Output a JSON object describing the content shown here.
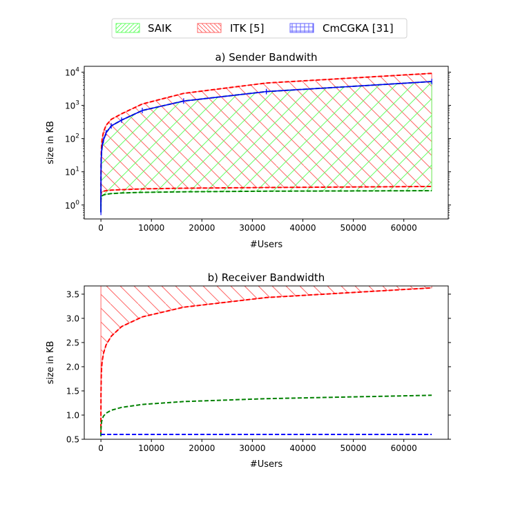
{
  "legend": {
    "entries": [
      {
        "label": "SAIK",
        "edge": "#66ff66",
        "face": "#ccffcc",
        "hatch": "diag-up"
      },
      {
        "label": "ITK [5]",
        "edge": "#ff6666",
        "face": "#ffd6d6",
        "hatch": "diag-down"
      },
      {
        "label": "CmCGKA [31]",
        "edge": "#6666ff",
        "face": "#d6d6ff",
        "hatch": "grid"
      }
    ]
  },
  "chart_data": [
    {
      "type": "area",
      "title": "a) Sender Bandwith",
      "xlabel": "#Users",
      "ylabel": "size in KB",
      "yscale": "log",
      "xlim": [
        -3300,
        68800
      ],
      "ylim": [
        0.38,
        15000
      ],
      "xticks": [
        0,
        10000,
        20000,
        30000,
        40000,
        50000,
        60000
      ],
      "yticks": [
        1,
        10,
        100,
        1000,
        10000
      ],
      "ytick_labels": [
        "10^0",
        "10^1",
        "10^2",
        "10^3",
        "10^4"
      ],
      "x": [
        2,
        4,
        8,
        16,
        32,
        64,
        128,
        256,
        512,
        1024,
        2048,
        4096,
        8192,
        16384,
        32768,
        65536
      ],
      "series": [
        {
          "color": "#ff0000",
          "style": "dashed",
          "values": [
            1.2,
            1.55,
            1.8,
            2.0,
            2.15,
            2.3,
            2.4,
            2.5,
            2.6,
            2.7,
            2.8,
            2.9,
            3.05,
            3.2,
            3.35,
            3.6
          ]
        },
        {
          "color": "#008000",
          "style": "dashed",
          "values": [
            0.8,
            1.05,
            1.25,
            1.4,
            1.55,
            1.7,
            1.8,
            1.9,
            2.0,
            2.1,
            2.2,
            2.3,
            2.4,
            2.5,
            2.6,
            2.7
          ]
        },
        {
          "color": "#ff0000",
          "style": "dashed",
          "values": [
            2.4,
            4.2,
            7.5,
            13,
            22,
            38,
            62,
            100,
            160,
            250,
            380,
            560,
            1100,
            2300,
            4700,
            9200
          ]
        },
        {
          "color": "#008000",
          "style": "dashed",
          "values": [
            0.6,
            1.5,
            3.5,
            7.5,
            15,
            25,
            40,
            60,
            90,
            150,
            240,
            360,
            700,
            1350,
            2600,
            5200
          ]
        },
        {
          "color": "#0000ff",
          "style": "solid",
          "markers": "vline",
          "values": [
            0.6,
            1.5,
            3.5,
            7.5,
            15,
            25,
            40,
            60,
            90,
            150,
            240,
            360,
            700,
            1350,
            2600,
            5200
          ]
        }
      ],
      "fills": [
        {
          "hatch": "diag-down",
          "color": "#ff6666",
          "lower_series": 0,
          "upper_series": 2
        },
        {
          "hatch": "diag-up",
          "color": "#66ff66",
          "lower_series": 1,
          "upper_series": 3
        }
      ]
    },
    {
      "type": "area",
      "title": "b) Receiver Bandwidth",
      "xlabel": "#Users",
      "ylabel": "size in KB",
      "yscale": "linear",
      "xlim": [
        -3300,
        68800
      ],
      "ylim": [
        0.5,
        3.67
      ],
      "xticks": [
        0,
        10000,
        20000,
        30000,
        40000,
        50000,
        60000
      ],
      "yticks": [
        0.5,
        1.0,
        1.5,
        2.0,
        2.5,
        3.0,
        3.5
      ],
      "ytick_labels": [
        "0.5",
        "1.0",
        "1.5",
        "2.0",
        "2.5",
        "3.0",
        "3.5"
      ],
      "x": [
        2,
        4,
        8,
        16,
        32,
        64,
        128,
        256,
        512,
        1024,
        2048,
        4096,
        8192,
        16384,
        32768,
        65536
      ],
      "series": [
        {
          "color": "#ff0000",
          "style": "dashed",
          "values": [
            0.6,
            0.95,
            1.2,
            1.4,
            1.6,
            1.8,
            1.97,
            2.12,
            2.28,
            2.45,
            2.63,
            2.83,
            3.03,
            3.23,
            3.43,
            3.63
          ]
        },
        {
          "color": "#008000",
          "style": "dashed",
          "values": [
            0.56,
            0.6,
            0.65,
            0.7,
            0.75,
            0.8,
            0.86,
            0.92,
            0.98,
            1.04,
            1.1,
            1.16,
            1.22,
            1.28,
            1.34,
            1.41
          ]
        },
        {
          "color": "#0000ff",
          "style": "dashed",
          "values": [
            0.6,
            0.6,
            0.6,
            0.6,
            0.6,
            0.6,
            0.6,
            0.6,
            0.6,
            0.6,
            0.6,
            0.6,
            0.6,
            0.6,
            0.6,
            0.6
          ]
        }
      ],
      "fills": [
        {
          "hatch": "diag-down",
          "color": "#ff6666",
          "lower_series": 0,
          "upper_value": 3.67
        }
      ]
    }
  ]
}
